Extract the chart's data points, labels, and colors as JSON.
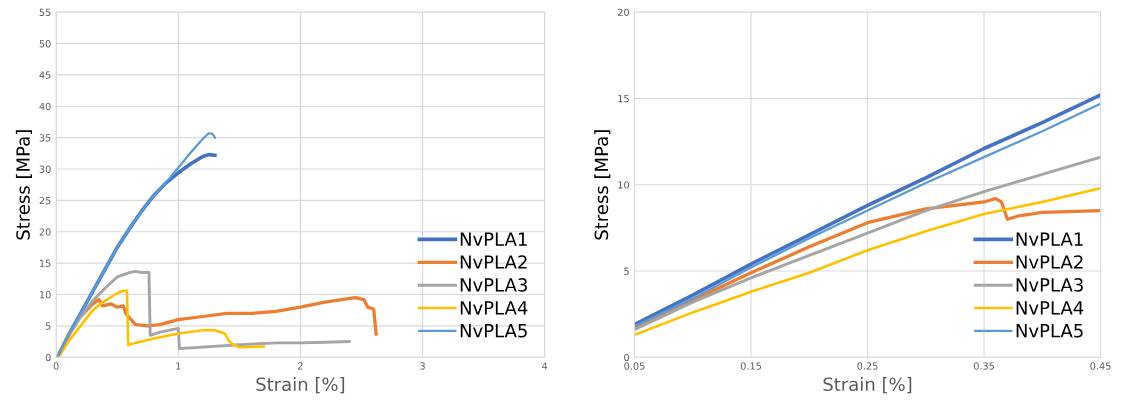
{
  "chart_data": [
    {
      "type": "line",
      "xlabel": "Strain [%]",
      "ylabel": "Stress [MPa]",
      "xlim": [
        0,
        4
      ],
      "xticks": [
        0,
        1,
        2,
        3,
        4
      ],
      "ylim": [
        0,
        55
      ],
      "yticks": [
        0,
        5,
        10,
        15,
        20,
        25,
        30,
        35,
        40,
        45,
        50,
        55
      ],
      "grid": true,
      "legend": "bottom right",
      "marker": "none",
      "line_style": "solid",
      "series": [
        {
          "name": "NvPLA1",
          "color": "#4472c4",
          "x": [
            0,
            0.02,
            0.05,
            0.1,
            0.2,
            0.3,
            0.4,
            0.5,
            0.6,
            0.7,
            0.8,
            0.9,
            1.0,
            1.1,
            1.2,
            1.25,
            1.3
          ],
          "values": [
            0,
            0.3,
            1.5,
            3.5,
            7,
            10.5,
            14,
            17.5,
            20.5,
            23.3,
            25.8,
            27.8,
            29.4,
            30.8,
            32,
            32.3,
            32.2
          ]
        },
        {
          "name": "NvPLA2",
          "color": "#ed7d31",
          "x": [
            0,
            0.03,
            0.1,
            0.2,
            0.3,
            0.35,
            0.38,
            0.45,
            0.5,
            0.55,
            0.57,
            0.6,
            0.65,
            0.75,
            0.85,
            1.0,
            1.2,
            1.4,
            1.6,
            1.8,
            2.0,
            2.2,
            2.45,
            2.52,
            2.55,
            2.6,
            2.62
          ],
          "values": [
            0,
            0.5,
            3.5,
            6.5,
            8.5,
            9.2,
            8.2,
            8.5,
            8.0,
            8.2,
            7.0,
            6.3,
            5.2,
            5.0,
            5.2,
            6.0,
            6.5,
            7.0,
            7.0,
            7.3,
            8.0,
            8.8,
            9.5,
            9.2,
            8.0,
            7.7,
            3.7
          ]
        },
        {
          "name": "NvPLA3",
          "color": "#a5a5a5",
          "x": [
            0,
            0.03,
            0.1,
            0.2,
            0.3,
            0.4,
            0.5,
            0.6,
            0.65,
            0.7,
            0.76,
            0.77,
            0.85,
            1.0,
            1.01,
            1.1,
            1.5,
            1.8,
            2.0,
            2.2,
            2.4
          ],
          "values": [
            0,
            0.5,
            3.3,
            6.5,
            9.0,
            11.0,
            12.8,
            13.5,
            13.7,
            13.5,
            13.5,
            3.5,
            4.0,
            4.6,
            1.4,
            1.5,
            2.0,
            2.3,
            2.3,
            2.4,
            2.5
          ]
        },
        {
          "name": "NvPLA4",
          "color": "#ffc000",
          "x": [
            0,
            0.03,
            0.1,
            0.2,
            0.3,
            0.4,
            0.5,
            0.55,
            0.58,
            0.59,
            0.8,
            1.0,
            1.2,
            1.3,
            1.38,
            1.42,
            1.45,
            1.5,
            1.7
          ],
          "values": [
            0,
            0.3,
            2.5,
            5.0,
            7.5,
            9.0,
            10.2,
            10.6,
            10.6,
            2.0,
            3.0,
            3.8,
            4.3,
            4.3,
            3.8,
            2.5,
            2.0,
            1.6,
            1.7
          ]
        },
        {
          "name": "NvPLA5",
          "color": "#5b9bd5",
          "x": [
            0,
            0.02,
            0.05,
            0.1,
            0.2,
            0.3,
            0.4,
            0.5,
            0.6,
            0.7,
            0.8,
            0.9,
            1.0,
            1.1,
            1.2,
            1.25,
            1.28,
            1.3
          ],
          "values": [
            0,
            0.3,
            1.5,
            3.5,
            7,
            10.5,
            14,
            17.5,
            20.5,
            23.3,
            25.8,
            27.9,
            30.2,
            32.6,
            34.8,
            35.7,
            35.6,
            35.0
          ]
        }
      ]
    },
    {
      "type": "line",
      "xlabel": "Strain [%]",
      "ylabel": "Stress [MPa]",
      "xlim": [
        0.05,
        0.45
      ],
      "xticks": [
        0.05,
        0.15,
        0.25,
        0.35,
        0.45
      ],
      "ylim": [
        0,
        20
      ],
      "yticks": [
        0,
        5,
        10,
        15,
        20
      ],
      "grid": true,
      "legend": "bottom right",
      "marker": "none",
      "line_style": "solid",
      "series": [
        {
          "name": "NvPLA1",
          "color": "#4472c4",
          "x": [
            0.05,
            0.1,
            0.15,
            0.2,
            0.25,
            0.3,
            0.35,
            0.4,
            0.45
          ],
          "values": [
            1.9,
            3.6,
            5.4,
            7.1,
            8.8,
            10.4,
            12.1,
            13.6,
            15.2
          ]
        },
        {
          "name": "NvPLA2",
          "color": "#ed7d31",
          "x": [
            0.05,
            0.1,
            0.15,
            0.2,
            0.25,
            0.3,
            0.35,
            0.36,
            0.365,
            0.37,
            0.38,
            0.4,
            0.45
          ],
          "values": [
            1.7,
            3.3,
            4.9,
            6.4,
            7.8,
            8.6,
            9.0,
            9.2,
            9.0,
            8.0,
            8.2,
            8.4,
            8.5
          ]
        },
        {
          "name": "NvPLA3",
          "color": "#a5a5a5",
          "x": [
            0.05,
            0.1,
            0.15,
            0.2,
            0.25,
            0.3,
            0.35,
            0.4,
            0.45
          ],
          "values": [
            1.6,
            3.2,
            4.6,
            5.9,
            7.2,
            8.5,
            9.6,
            10.6,
            11.6
          ]
        },
        {
          "name": "NvPLA4",
          "color": "#ffc000",
          "x": [
            0.05,
            0.1,
            0.15,
            0.2,
            0.25,
            0.3,
            0.35,
            0.4,
            0.45
          ],
          "values": [
            1.3,
            2.6,
            3.8,
            4.9,
            6.2,
            7.3,
            8.3,
            9.0,
            9.8
          ]
        },
        {
          "name": "NvPLA5",
          "color": "#5b9bd5",
          "x": [
            0.05,
            0.1,
            0.15,
            0.2,
            0.25,
            0.3,
            0.35,
            0.4,
            0.45
          ],
          "values": [
            1.8,
            3.4,
            5.2,
            6.9,
            8.5,
            10.1,
            11.6,
            13.1,
            14.7
          ]
        }
      ]
    }
  ]
}
